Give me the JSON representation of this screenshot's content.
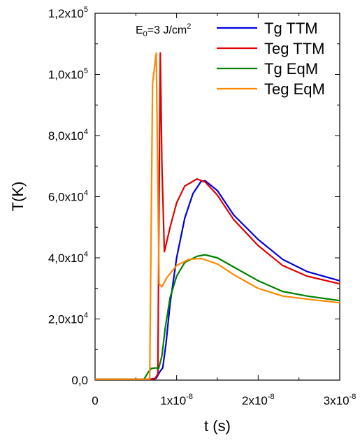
{
  "chart_data": {
    "type": "line",
    "xlabel": "t (s)",
    "ylabel": "T(K)",
    "xlim": [
      0,
      3e-08
    ],
    "ylim": [
      0,
      120000
    ],
    "x_ticks": [
      {
        "value": 0,
        "mantissa": "0",
        "exp": ""
      },
      {
        "value": 1e-08,
        "mantissa": "1x10",
        "exp": "-8"
      },
      {
        "value": 2e-08,
        "mantissa": "2x10",
        "exp": "-8"
      },
      {
        "value": 3e-08,
        "mantissa": "3x10",
        "exp": "-8"
      }
    ],
    "y_ticks": [
      {
        "value": 0,
        "mantissa": "0,0",
        "exp": ""
      },
      {
        "value": 20000,
        "mantissa": "2,0x10",
        "exp": "4"
      },
      {
        "value": 40000,
        "mantissa": "4,0x10",
        "exp": "4"
      },
      {
        "value": 60000,
        "mantissa": "6,0x10",
        "exp": "4"
      },
      {
        "value": 80000,
        "mantissa": "8,0x10",
        "exp": "4"
      },
      {
        "value": 100000,
        "mantissa": "1,0x10",
        "exp": "5"
      },
      {
        "value": 120000,
        "mantissa": "1,2x10",
        "exp": "5"
      }
    ],
    "annotation": {
      "prefix": "E",
      "sub": "0",
      "mid": "=3 J/cm",
      "sup": "2"
    },
    "legend_position": "top-right",
    "series": [
      {
        "name": "Tg TTM",
        "color": "#0000dd",
        "points": [
          [
            0,
            300
          ],
          [
            6.8e-09,
            300
          ],
          [
            7.5e-09,
            600
          ],
          [
            8e-09,
            3000
          ],
          [
            8.3e-09,
            4000
          ],
          [
            8.7e-09,
            12000
          ],
          [
            9.2e-09,
            25000
          ],
          [
            1e-08,
            40000
          ],
          [
            1.1e-08,
            53000
          ],
          [
            1.2e-08,
            61000
          ],
          [
            1.3e-08,
            65000
          ],
          [
            1.35e-08,
            65200
          ],
          [
            1.5e-08,
            62000
          ],
          [
            1.7e-08,
            54000
          ],
          [
            2e-08,
            46000
          ],
          [
            2.3e-08,
            39500
          ],
          [
            2.6e-08,
            35500
          ],
          [
            3e-08,
            32500
          ]
        ]
      },
      {
        "name": "Teg TTM",
        "color": "#e00000",
        "points": [
          [
            0,
            300
          ],
          [
            7.3e-09,
            300
          ],
          [
            7.7e-09,
            2000
          ],
          [
            7.85e-09,
            60000
          ],
          [
            8e-09,
            107000
          ],
          [
            8.2e-09,
            70000
          ],
          [
            8.5e-09,
            42000
          ],
          [
            9.2e-09,
            50000
          ],
          [
            1e-08,
            58000
          ],
          [
            1.1e-08,
            63500
          ],
          [
            1.25e-08,
            65800
          ],
          [
            1.35e-08,
            64800
          ],
          [
            1.5e-08,
            60500
          ],
          [
            1.7e-08,
            52500
          ],
          [
            2e-08,
            44000
          ],
          [
            2.3e-08,
            37500
          ],
          [
            2.6e-08,
            34000
          ],
          [
            3e-08,
            31500
          ]
        ]
      },
      {
        "name": "Tg EqM",
        "color": "#008000",
        "points": [
          [
            0,
            300
          ],
          [
            6e-09,
            300
          ],
          [
            6.5e-09,
            2500
          ],
          [
            6.9e-09,
            3800
          ],
          [
            7.5e-09,
            4000
          ],
          [
            7.8e-09,
            3800
          ],
          [
            8.2e-09,
            8000
          ],
          [
            8.6e-09,
            17000
          ],
          [
            9.2e-09,
            27000
          ],
          [
            1e-08,
            34000
          ],
          [
            1.1e-08,
            38500
          ],
          [
            1.25e-08,
            40500
          ],
          [
            1.35e-08,
            41000
          ],
          [
            1.5e-08,
            40000
          ],
          [
            1.7e-08,
            37000
          ],
          [
            2e-08,
            32500
          ],
          [
            2.3e-08,
            29000
          ],
          [
            2.6e-08,
            27500
          ],
          [
            3e-08,
            26000
          ]
        ]
      },
      {
        "name": "Teg EqM",
        "color": "#ff8800",
        "points": [
          [
            0,
            300
          ],
          [
            6.7e-09,
            300
          ],
          [
            7.05e-09,
            97000
          ],
          [
            7.5e-09,
            107000
          ],
          [
            7.85e-09,
            31500
          ],
          [
            8.2e-09,
            30500
          ],
          [
            8.8e-09,
            33500
          ],
          [
            1e-08,
            37500
          ],
          [
            1.15e-08,
            39500
          ],
          [
            1.3e-08,
            39800
          ],
          [
            1.5e-08,
            38000
          ],
          [
            1.7e-08,
            34500
          ],
          [
            2e-08,
            30000
          ],
          [
            2.3e-08,
            27500
          ],
          [
            2.6e-08,
            26500
          ],
          [
            3e-08,
            25300
          ]
        ]
      }
    ]
  }
}
